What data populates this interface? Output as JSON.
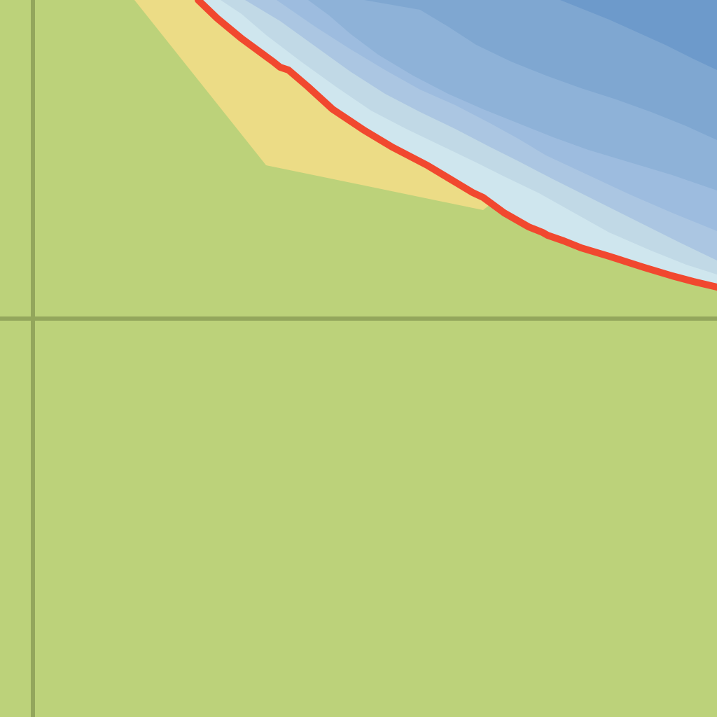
{
  "map": {
    "colors": {
      "land": "#bcd27a",
      "beach": "#ecdc86",
      "grid_line": "#93a65c",
      "shoreline": "#f1482f",
      "water_shallow": "#cfe6ee",
      "water_light": "#c1d9e6",
      "water_band_1": "#abc6e2",
      "water_band_2": "#9dbcdf",
      "water_band_3": "#8eb2d8",
      "water_band_4": "#7fa7d1",
      "water_deep": "#6d9acb"
    },
    "features": [
      "land",
      "beach",
      "ocean-depth-bands",
      "shoreline",
      "grid-lines"
    ]
  }
}
